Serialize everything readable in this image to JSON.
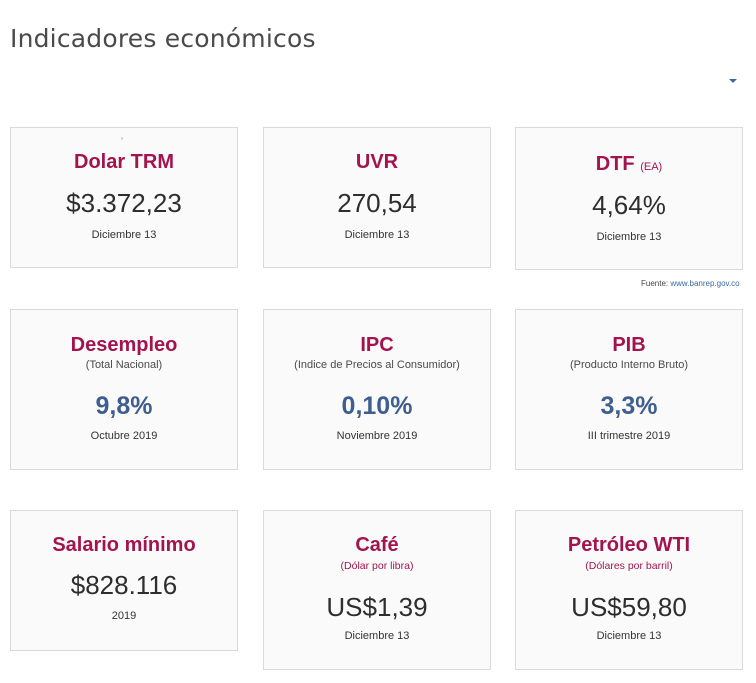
{
  "page": {
    "title": "Indicadores económicos"
  },
  "source": {
    "label": "Fuente:",
    "link": "www.banrep.gov.co"
  },
  "row1": [
    {
      "title": "Dolar TRM",
      "value": "$3.372,23",
      "date": "Diciembre 13"
    },
    {
      "title": "UVR",
      "value": "270,54",
      "date": "Diciembre 13"
    },
    {
      "title": "DTF",
      "suffix": "(EA)",
      "value": "4,64%",
      "date": "Diciembre 13"
    }
  ],
  "row2": [
    {
      "title": "Desempleo",
      "subtitle": "(Total Nacional)",
      "value": "9,8%",
      "date": "Octubre 2019"
    },
    {
      "title": "IPC",
      "subtitle": "(Indice de Precios al Consumidor)",
      "value": "0,10%",
      "date": "Noviembre 2019"
    },
    {
      "title": "PIB",
      "subtitle": "(Producto Interno Bruto)",
      "value": "3,3%",
      "date": "III trimestre 2019"
    }
  ],
  "row3": [
    {
      "title": "Salario mínimo",
      "value": "$828.116",
      "date": "2019"
    },
    {
      "title": "Café",
      "subtitle": "(Dólar por libra)",
      "value": "US$1,39",
      "date": "Diciembre 13"
    },
    {
      "title": "Petróleo WTI",
      "subtitle": "(Dólares por barril)",
      "value": "US$59,80",
      "date": "Diciembre 13"
    }
  ],
  "colors": {
    "accent": "#a3144f",
    "value_blue": "#3f5e8f",
    "link": "#3a68a6"
  },
  "icons": {
    "dropdown": "caret-down-icon"
  }
}
